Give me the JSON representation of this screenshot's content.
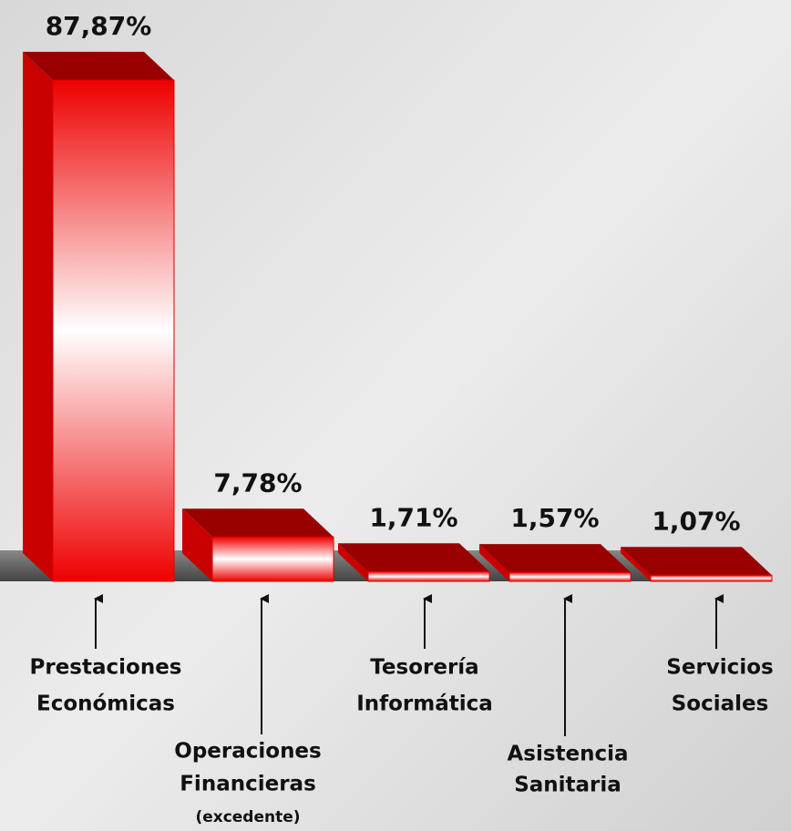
{
  "chart_data": {
    "type": "bar3d",
    "categories": [
      [
        "Prestaciones",
        "Económicas"
      ],
      [
        "Operaciones",
        "Financieras",
        "(excedente)"
      ],
      [
        "Tesorería",
        "Informática"
      ],
      [
        "Asistencia",
        "Sanitaria"
      ],
      [
        "Servicios",
        "Sociales"
      ]
    ],
    "values": [
      87.87,
      7.78,
      1.71,
      1.57,
      1.07
    ],
    "value_labels": [
      "87,87%",
      "7,78%",
      "1,71%",
      "1,57%",
      "1,07%"
    ],
    "color": "#e00000"
  }
}
